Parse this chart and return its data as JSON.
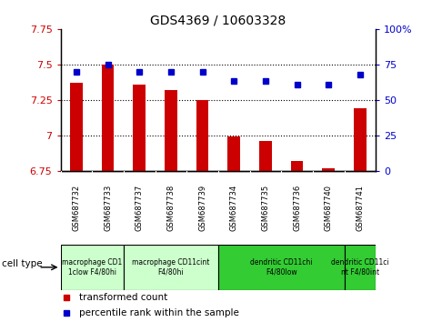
{
  "title": "GDS4369 / 10603328",
  "samples": [
    "GSM687732",
    "GSM687733",
    "GSM687737",
    "GSM687738",
    "GSM687739",
    "GSM687734",
    "GSM687735",
    "GSM687736",
    "GSM687740",
    "GSM687741"
  ],
  "transformed_count": [
    7.37,
    7.5,
    7.36,
    7.32,
    7.25,
    6.99,
    6.96,
    6.82,
    6.77,
    7.19
  ],
  "percentile_rank": [
    70,
    75,
    70,
    70,
    70,
    63,
    63,
    61,
    61,
    68
  ],
  "ylim_left": [
    6.75,
    7.75
  ],
  "ylim_right": [
    0,
    100
  ],
  "yticks_left": [
    6.75,
    7.0,
    7.25,
    7.5,
    7.75
  ],
  "yticks_right": [
    0,
    25,
    50,
    75,
    100
  ],
  "ytick_labels_left": [
    "6.75",
    "7",
    "7.25",
    "7.5",
    "7.75"
  ],
  "ytick_labels_right": [
    "0",
    "25",
    "50",
    "75",
    "100%"
  ],
  "bar_color": "#cc0000",
  "dot_color": "#0000cc",
  "cell_type_groups": [
    {
      "label": "macrophage CD1\n1clow F4/80hi",
      "start": 0,
      "end": 2,
      "color": "#ccffcc"
    },
    {
      "label": "macrophage CD11cint\nF4/80hi",
      "start": 2,
      "end": 5,
      "color": "#ccffcc"
    },
    {
      "label": "dendritic CD11chi\nF4/80low",
      "start": 5,
      "end": 9,
      "color": "#33cc33"
    },
    {
      "label": "dendritic CD11ci\nnt F4/80int",
      "start": 9,
      "end": 10,
      "color": "#33cc33"
    }
  ],
  "sample_label_bg": "#c8c8c8",
  "legend_bar_label": "transformed count",
  "legend_dot_label": "percentile rank within the sample",
  "background_color": "#ffffff",
  "plot_bg_color": "#ffffff",
  "tick_label_color_left": "#cc0000",
  "tick_label_color_right": "#0000cc",
  "bar_width": 0.4
}
